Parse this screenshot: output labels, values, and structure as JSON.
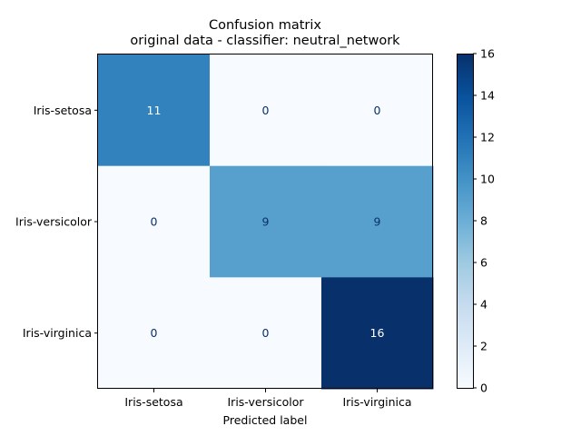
{
  "chart_data": {
    "type": "heatmap",
    "title": "Confusion matrix",
    "subtitle": "original data - classifier: neutral_network",
    "xlabel": "Predicted label",
    "ylabel": "",
    "row_labels": [
      "Iris-setosa",
      "Iris-versicolor",
      "Iris-virginica"
    ],
    "col_labels": [
      "Iris-setosa",
      "Iris-versicolor",
      "Iris-virginica"
    ],
    "values": [
      [
        11,
        0,
        0
      ],
      [
        0,
        9,
        9
      ],
      [
        0,
        0,
        16
      ]
    ],
    "colorbar": {
      "min": 0,
      "max": 16,
      "ticks": [
        "0",
        "2",
        "4",
        "6",
        "8",
        "10",
        "12",
        "14",
        "16"
      ],
      "colormap": "Blues"
    },
    "colors": {
      "low": "#f7fbff",
      "high": "#08306b",
      "text_dark": "#08306b",
      "text_light": "#ffffff"
    }
  }
}
